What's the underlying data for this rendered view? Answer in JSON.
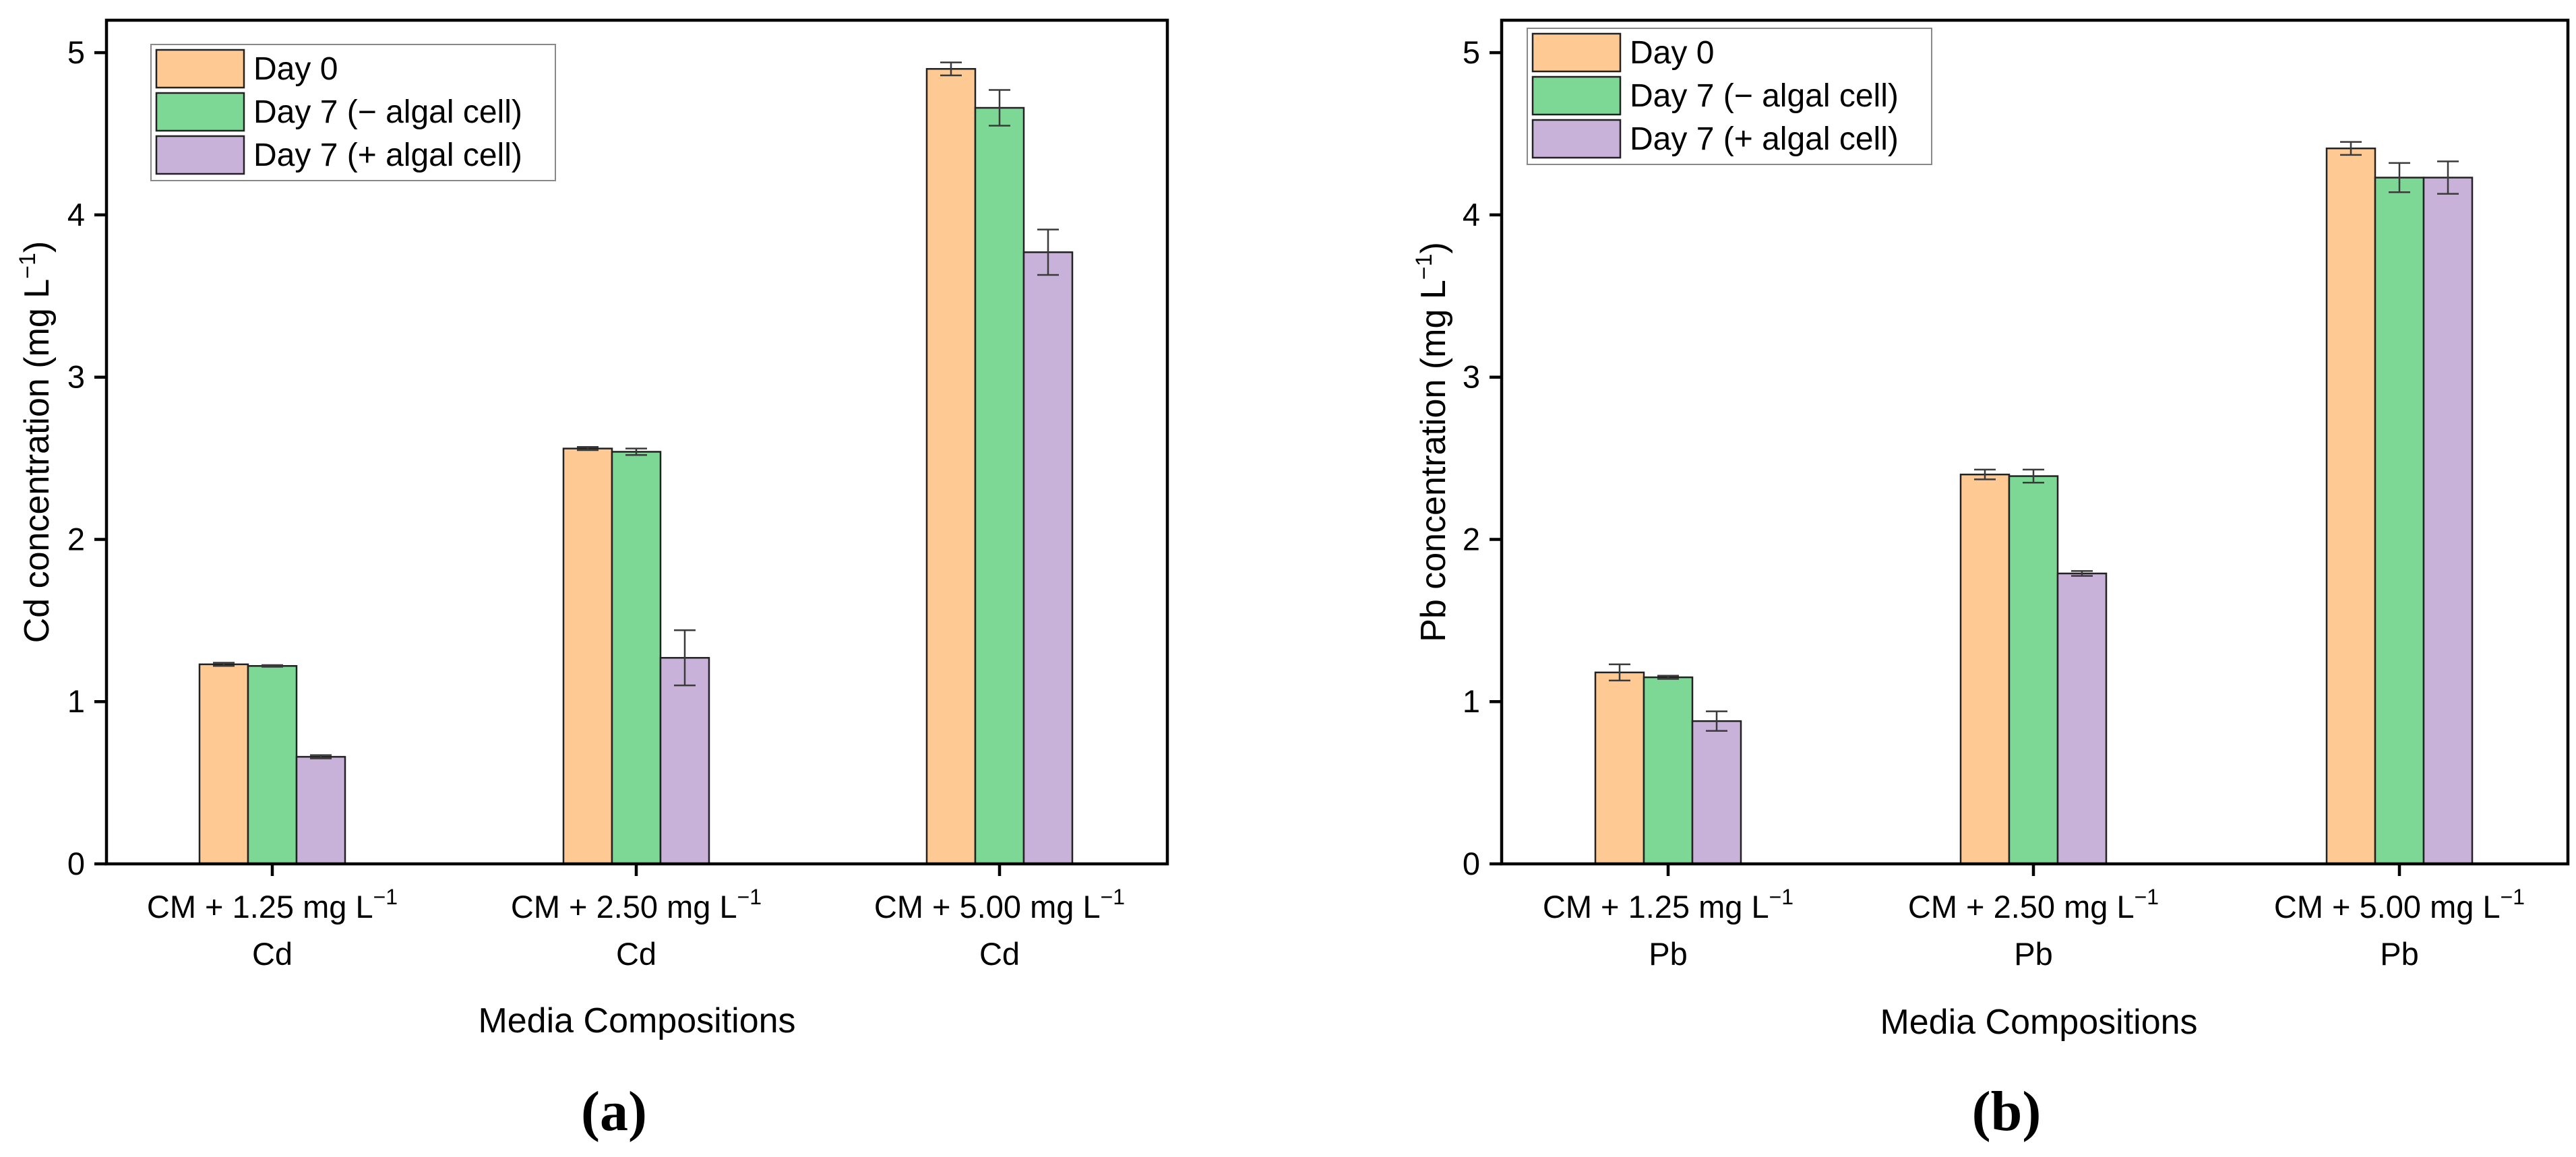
{
  "chart_data": [
    {
      "type": "bar",
      "panel_label": "(a)",
      "xlabel": "Media Compositions",
      "ylabel": "Cd concentration (mg L",
      "ylabel_sup": "−1",
      "ylabel_close": ")",
      "ylim": [
        0,
        5.2
      ],
      "yticks": [
        "0",
        "1",
        "2",
        "3",
        "4",
        "5"
      ],
      "categories": [
        {
          "line1": "CM + 1.25 mg L",
          "sup": "−1",
          "line2": "Cd"
        },
        {
          "line1": "CM + 2.50 mg L",
          "sup": "−1",
          "line2": "Cd"
        },
        {
          "line1": "CM + 5.00 mg L",
          "sup": "−1",
          "line2": "Cd"
        }
      ],
      "legend_position": "top-left",
      "series": [
        {
          "name": "Day 0",
          "color": "#FFC994",
          "values": [
            1.23,
            2.56,
            4.9
          ],
          "errors": [
            0.01,
            0.01,
            0.04
          ]
        },
        {
          "name": "Day 7 (− algal cell)",
          "color": "#7DD896",
          "values": [
            1.22,
            2.54,
            4.66
          ],
          "errors": [
            0.005,
            0.02,
            0.11
          ]
        },
        {
          "name": "Day 7 (+ algal cell)",
          "color": "#C9B2DA",
          "values": [
            0.66,
            1.27,
            3.77
          ],
          "errors": [
            0.01,
            0.17,
            0.14
          ]
        }
      ]
    },
    {
      "type": "bar",
      "panel_label": "(b)",
      "xlabel": "Media Compositions",
      "ylabel": "Pb concentration (mg L",
      "ylabel_sup": "−1",
      "ylabel_close": ")",
      "ylim": [
        0,
        5.2
      ],
      "yticks": [
        "0",
        "1",
        "2",
        "3",
        "4",
        "5"
      ],
      "categories": [
        {
          "line1": "CM + 1.25 mg L",
          "sup": "−1",
          "line2": "Pb"
        },
        {
          "line1": "CM + 2.50 mg L",
          "sup": "−1",
          "line2": "Pb"
        },
        {
          "line1": "CM + 5.00 mg L",
          "sup": "−1",
          "line2": "Pb"
        }
      ],
      "legend_position": "top-left",
      "series": [
        {
          "name": "Day 0",
          "color": "#FFC994",
          "values": [
            1.18,
            2.4,
            4.41
          ],
          "errors": [
            0.05,
            0.03,
            0.04
          ]
        },
        {
          "name": "Day 7 (− algal cell)",
          "color": "#7DD896",
          "values": [
            1.15,
            2.39,
            4.23
          ],
          "errors": [
            0.01,
            0.04,
            0.09
          ]
        },
        {
          "name": "Day 7 (+ algal cell)",
          "color": "#C9B2DA",
          "values": [
            0.88,
            1.79,
            4.23
          ],
          "errors": [
            0.06,
            0.015,
            0.1
          ]
        }
      ]
    }
  ]
}
